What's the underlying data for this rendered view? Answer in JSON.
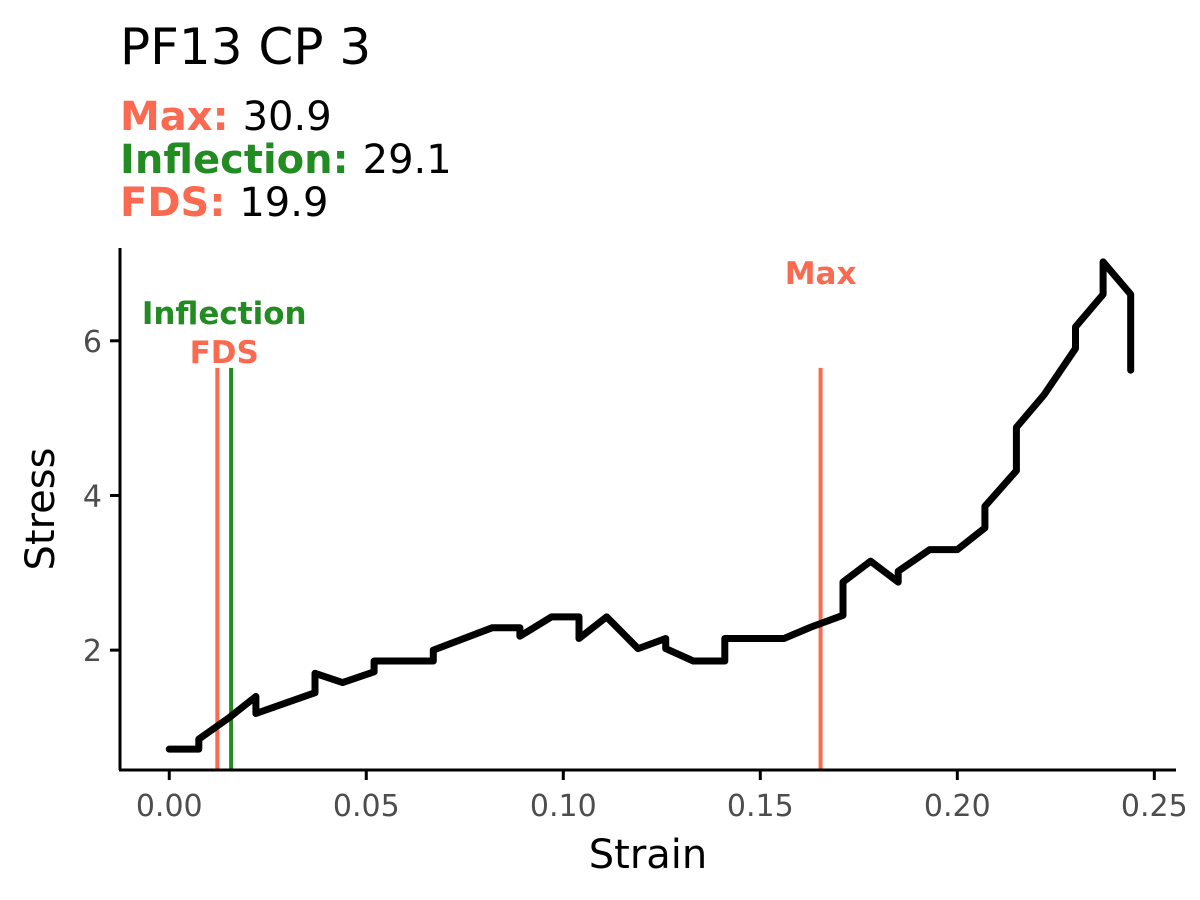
{
  "colors": {
    "accent_red": "#FA6A50",
    "accent_green": "#228B22",
    "curve": "#000000",
    "axis": "#000000",
    "tick_text": "#4d4d4d"
  },
  "chart_data": {
    "type": "line",
    "title": "PF13 CP 3",
    "stats": [
      {
        "label": "Max:",
        "value": "30.9",
        "color": "#FA6A50"
      },
      {
        "label": "Inflection:",
        "value": "29.1",
        "color": "#228B22"
      },
      {
        "label": "FDS:",
        "value": "19.9",
        "color": "#FA6A50"
      }
    ],
    "xlabel": "Strain",
    "ylabel": "Stress",
    "xlim": [
      -0.0125,
      0.2555
    ],
    "ylim": [
      0.45,
      7.2
    ],
    "xticks": [
      0.0,
      0.05,
      0.1,
      0.15,
      0.2,
      0.25
    ],
    "xtick_labels": [
      "0.00",
      "0.05",
      "0.10",
      "0.15",
      "0.20",
      "0.25"
    ],
    "yticks": [
      2,
      4,
      6
    ],
    "ytick_labels": [
      "2",
      "4",
      "6"
    ],
    "grid": false,
    "series": [
      {
        "x": [
          0.0,
          0.0075,
          0.0075,
          0.015,
          0.022,
          0.022,
          0.037,
          0.037,
          0.044,
          0.052,
          0.052,
          0.067,
          0.067,
          0.082,
          0.089,
          0.089,
          0.097,
          0.104,
          0.104,
          0.111,
          0.119,
          0.126,
          0.126,
          0.133,
          0.141,
          0.141,
          0.148,
          0.156,
          0.163,
          0.171,
          0.171,
          0.178,
          0.185,
          0.185,
          0.193,
          0.2,
          0.207,
          0.207,
          0.215,
          0.215,
          0.222,
          0.23,
          0.23,
          0.237,
          0.237,
          0.244,
          0.244,
          0.244
        ],
        "y": [
          0.72,
          0.72,
          0.85,
          1.12,
          1.4,
          1.18,
          1.45,
          1.7,
          1.58,
          1.72,
          1.86,
          1.86,
          2.0,
          2.29,
          2.29,
          2.18,
          2.43,
          2.43,
          2.15,
          2.43,
          2.02,
          2.15,
          2.02,
          1.86,
          1.86,
          2.15,
          2.15,
          2.15,
          2.3,
          2.45,
          2.88,
          3.15,
          2.88,
          3.02,
          3.3,
          3.3,
          3.58,
          3.86,
          4.32,
          4.88,
          5.3,
          5.9,
          6.18,
          6.6,
          7.02,
          6.6,
          5.88,
          5.62
        ]
      }
    ],
    "markers": [
      {
        "label": "FDS",
        "x": 0.0122,
        "color": "#FA6A50"
      },
      {
        "label": "Inflection",
        "x": 0.0157,
        "color": "#228B22"
      },
      {
        "label": "Max",
        "x": 0.1653,
        "color": "#FA6A50"
      }
    ]
  }
}
